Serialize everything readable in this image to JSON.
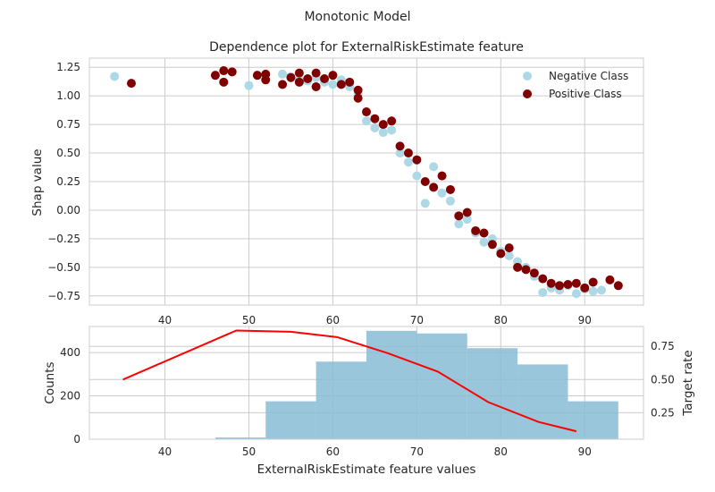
{
  "suptitle": "Monotonic Model",
  "chart_data": [
    {
      "type": "scatter",
      "title": "Dependence plot for ExternalRiskEstimate feature",
      "xlabel": "",
      "ylabel": "Shap value",
      "xlim": [
        31,
        97
      ],
      "ylim": [
        -0.83,
        1.33
      ],
      "xticks": [
        40,
        50,
        60,
        70,
        80,
        90
      ],
      "yticks": [
        -0.75,
        -0.5,
        -0.25,
        0.0,
        0.25,
        0.5,
        0.75,
        1.0,
        1.25
      ],
      "ytick_labels": [
        "−0.75",
        "−0.50",
        "−0.25",
        "0.00",
        "0.25",
        "0.50",
        "0.75",
        "1.00",
        "1.25"
      ],
      "grid": true,
      "legend_position": "top-right",
      "series": [
        {
          "name": "Negative Class",
          "color": "#add8e6",
          "points": [
            [
              34,
              1.17
            ],
            [
              50,
              1.09
            ],
            [
              54,
              1.19
            ],
            [
              55,
              1.17
            ],
            [
              56,
              1.14
            ],
            [
              57,
              1.13
            ],
            [
              58,
              1.16
            ],
            [
              59,
              1.12
            ],
            [
              60,
              1.1
            ],
            [
              61,
              1.14
            ],
            [
              62,
              1.08
            ],
            [
              63,
              1.02
            ],
            [
              64,
              0.78
            ],
            [
              65,
              0.72
            ],
            [
              66,
              0.68
            ],
            [
              67,
              0.7
            ],
            [
              68,
              0.5
            ],
            [
              69,
              0.42
            ],
            [
              70,
              0.3
            ],
            [
              71,
              0.06
            ],
            [
              72,
              0.38
            ],
            [
              73,
              0.15
            ],
            [
              74,
              0.08
            ],
            [
              75,
              -0.12
            ],
            [
              76,
              -0.08
            ],
            [
              77,
              -0.2
            ],
            [
              78,
              -0.28
            ],
            [
              79,
              -0.25
            ],
            [
              80,
              -0.36
            ],
            [
              81,
              -0.4
            ],
            [
              82,
              -0.45
            ],
            [
              83,
              -0.5
            ],
            [
              84,
              -0.58
            ],
            [
              85,
              -0.72
            ],
            [
              86,
              -0.68
            ],
            [
              87,
              -0.7
            ],
            [
              88,
              -0.66
            ],
            [
              89,
              -0.73
            ],
            [
              90,
              -0.69
            ],
            [
              91,
              -0.71
            ],
            [
              92,
              -0.7
            ]
          ]
        },
        {
          "name": "Positive Class",
          "color": "#800000",
          "points": [
            [
              36,
              1.11
            ],
            [
              46,
              1.18
            ],
            [
              47,
              1.12
            ],
            [
              47,
              1.22
            ],
            [
              48,
              1.21
            ],
            [
              51,
              1.18
            ],
            [
              52,
              1.14
            ],
            [
              52,
              1.19
            ],
            [
              54,
              1.1
            ],
            [
              55,
              1.16
            ],
            [
              56,
              1.12
            ],
            [
              56,
              1.2
            ],
            [
              57,
              1.15
            ],
            [
              58,
              1.08
            ],
            [
              58,
              1.2
            ],
            [
              59,
              1.15
            ],
            [
              60,
              1.18
            ],
            [
              61,
              1.1
            ],
            [
              62,
              1.12
            ],
            [
              63,
              1.05
            ],
            [
              63,
              0.98
            ],
            [
              64,
              0.86
            ],
            [
              65,
              0.8
            ],
            [
              66,
              0.75
            ],
            [
              67,
              0.78
            ],
            [
              68,
              0.56
            ],
            [
              69,
              0.5
            ],
            [
              70,
              0.44
            ],
            [
              71,
              0.25
            ],
            [
              72,
              0.2
            ],
            [
              73,
              0.3
            ],
            [
              74,
              0.18
            ],
            [
              75,
              -0.05
            ],
            [
              76,
              -0.02
            ],
            [
              77,
              -0.18
            ],
            [
              78,
              -0.2
            ],
            [
              79,
              -0.3
            ],
            [
              80,
              -0.38
            ],
            [
              81,
              -0.33
            ],
            [
              82,
              -0.5
            ],
            [
              83,
              -0.52
            ],
            [
              84,
              -0.55
            ],
            [
              85,
              -0.6
            ],
            [
              86,
              -0.64
            ],
            [
              87,
              -0.66
            ],
            [
              88,
              -0.65
            ],
            [
              89,
              -0.64
            ],
            [
              90,
              -0.68
            ],
            [
              91,
              -0.63
            ],
            [
              93,
              -0.61
            ],
            [
              94,
              -0.66
            ]
          ]
        }
      ]
    },
    {
      "type": "bar",
      "xlabel": "ExternalRiskEstimate feature values",
      "ylabel": "Counts",
      "y2label": "Target rate",
      "xlim": [
        31,
        97
      ],
      "ylim": [
        0,
        520
      ],
      "y2lim": [
        0.05,
        0.9
      ],
      "xticks": [
        40,
        50,
        60,
        70,
        80,
        90
      ],
      "xtick_labels": [
        "40",
        "50",
        "60",
        "70",
        "80",
        "90"
      ],
      "yticks": [
        0,
        200,
        400
      ],
      "y2ticks": [
        0.25,
        0.5,
        0.75
      ],
      "y2tick_labels": [
        "0.25",
        "0.50",
        "0.75"
      ],
      "grid": true,
      "bar_color": "#87bcd4",
      "line_color": "#ff0000",
      "y2label_color": "#ff0000",
      "bins": [
        {
          "x0": 46,
          "x1": 52,
          "count": 8
        },
        {
          "x0": 52,
          "x1": 58,
          "count": 175
        },
        {
          "x0": 58,
          "x1": 64,
          "count": 358
        },
        {
          "x0": 64,
          "x1": 70,
          "count": 500
        },
        {
          "x0": 70,
          "x1": 76,
          "count": 488
        },
        {
          "x0": 76,
          "x1": 82,
          "count": 420
        },
        {
          "x0": 82,
          "x1": 88,
          "count": 345
        },
        {
          "x0": 88,
          "x1": 94,
          "count": 175
        }
      ],
      "target_rate": {
        "x": [
          35,
          48.5,
          55,
          60.5,
          66.5,
          72.5,
          78.5,
          84.5,
          89
        ],
        "y": [
          0.5,
          0.87,
          0.86,
          0.82,
          0.7,
          0.56,
          0.33,
          0.18,
          0.11
        ]
      }
    }
  ]
}
